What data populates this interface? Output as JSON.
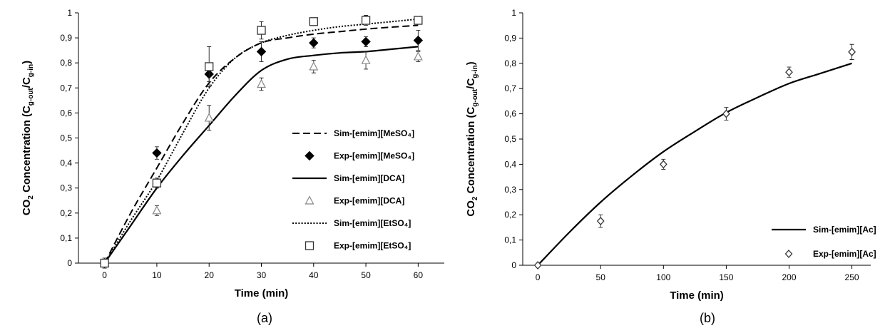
{
  "panel_a_label": "(a)",
  "panel_b_label": "(b)",
  "chart_data": [
    {
      "type": "line",
      "title": "",
      "panel_label": "(a)",
      "xlabel": "Time (min)",
      "ylabel": "CO₂ Concentration (Cg-out/Cg-in)",
      "xlim": [
        -5,
        65
      ],
      "ylim": [
        0,
        1
      ],
      "x_ticks": [
        0,
        10,
        20,
        30,
        40,
        50,
        60
      ],
      "x_tick_labels": [
        "0",
        "10",
        "20",
        "30",
        "40",
        "50",
        "60"
      ],
      "y_ticks": [
        0,
        0.1,
        0.2,
        0.3,
        0.4,
        0.5,
        0.6,
        0.7,
        0.8,
        0.9,
        1
      ],
      "y_tick_labels": [
        "0",
        "0,1",
        "0,2",
        "0,3",
        "0,4",
        "0,5",
        "0,6",
        "0,7",
        "0,8",
        "0,9",
        "1"
      ],
      "grid": false,
      "legend_position": "right",
      "series": [
        {
          "name": "Sim-[emim][MeSO₄]",
          "kind": "line",
          "style": "dashed",
          "x": [
            0,
            5,
            10,
            15,
            20,
            25,
            30,
            35,
            40,
            45,
            50,
            55,
            60
          ],
          "y": [
            0,
            0.2,
            0.38,
            0.56,
            0.72,
            0.82,
            0.88,
            0.9,
            0.915,
            0.925,
            0.935,
            0.943,
            0.95
          ]
        },
        {
          "name": "Exp-[emim][MeSO₄]",
          "kind": "marker",
          "marker": "filled-diamond",
          "x": [
            0,
            10,
            20,
            30,
            40,
            50,
            60
          ],
          "y": [
            0,
            0.44,
            0.755,
            0.845,
            0.88,
            0.885,
            0.89
          ],
          "err": [
            0.01,
            0.025,
            0.03,
            0.04,
            0.02,
            0.02,
            0.04
          ]
        },
        {
          "name": "Sim-[emim][DCA]",
          "kind": "line",
          "style": "solid",
          "x": [
            0,
            5,
            10,
            15,
            20,
            25,
            30,
            35,
            40,
            45,
            50,
            55,
            60
          ],
          "y": [
            0,
            0.15,
            0.3,
            0.43,
            0.55,
            0.67,
            0.77,
            0.815,
            0.83,
            0.84,
            0.845,
            0.855,
            0.865
          ]
        },
        {
          "name": "Exp-[emim][DCA]",
          "kind": "marker",
          "marker": "open-triangle",
          "x": [
            0,
            10,
            20,
            30,
            40,
            50,
            60
          ],
          "y": [
            0,
            0.21,
            0.58,
            0.715,
            0.785,
            0.81,
            0.825
          ],
          "err": [
            0.01,
            0.02,
            0.05,
            0.025,
            0.025,
            0.035,
            0.02
          ]
        },
        {
          "name": "Sim-[emim][EtSO₄]",
          "kind": "line",
          "style": "dotted",
          "x": [
            0,
            5,
            10,
            15,
            20,
            25,
            30,
            35,
            40,
            45,
            50,
            55,
            60
          ],
          "y": [
            0,
            0.17,
            0.33,
            0.52,
            0.7,
            0.82,
            0.88,
            0.91,
            0.93,
            0.945,
            0.955,
            0.965,
            0.975
          ]
        },
        {
          "name": "Exp-[emim][EtSO₄]",
          "kind": "marker",
          "marker": "open-square",
          "x": [
            0,
            10,
            20,
            30,
            40,
            50,
            60
          ],
          "y": [
            0,
            0.32,
            0.785,
            0.93,
            0.965,
            0.97,
            0.97
          ],
          "err": [
            0.02,
            0.02,
            0.08,
            0.035,
            0.01,
            0.02,
            0.01
          ]
        }
      ]
    },
    {
      "type": "line",
      "title": "",
      "panel_label": "(b)",
      "xlabel": "Time (min)",
      "ylabel": "CO₂ Concentration (Cg-out/Cg-in)",
      "xlim": [
        -12,
        265
      ],
      "ylim": [
        0,
        1
      ],
      "x_ticks": [
        0,
        50,
        100,
        150,
        200,
        250
      ],
      "x_tick_labels": [
        "0",
        "50",
        "100",
        "150",
        "200",
        "250"
      ],
      "y_ticks": [
        0,
        0.1,
        0.2,
        0.3,
        0.4,
        0.5,
        0.6,
        0.7,
        0.8,
        0.9,
        1
      ],
      "y_tick_labels": [
        "0",
        "0,1",
        "0,2",
        "0,3",
        "0,4",
        "0,5",
        "0,6",
        "0,7",
        "0,8",
        "0,9",
        "1"
      ],
      "grid": false,
      "legend_position": "bottom-right",
      "series": [
        {
          "name": "Sim-[emim][Ac]",
          "kind": "line",
          "style": "solid",
          "x": [
            0,
            25,
            50,
            75,
            100,
            125,
            150,
            175,
            200,
            225,
            250
          ],
          "y": [
            0,
            0.13,
            0.25,
            0.355,
            0.45,
            0.53,
            0.605,
            0.665,
            0.72,
            0.76,
            0.8
          ]
        },
        {
          "name": "Exp-[emim][Ac]",
          "kind": "marker",
          "marker": "open-diamond",
          "x": [
            0,
            50,
            100,
            150,
            200,
            250
          ],
          "y": [
            0,
            0.175,
            0.4,
            0.6,
            0.765,
            0.845
          ],
          "err": [
            0.005,
            0.025,
            0.02,
            0.025,
            0.02,
            0.03
          ]
        }
      ]
    }
  ]
}
